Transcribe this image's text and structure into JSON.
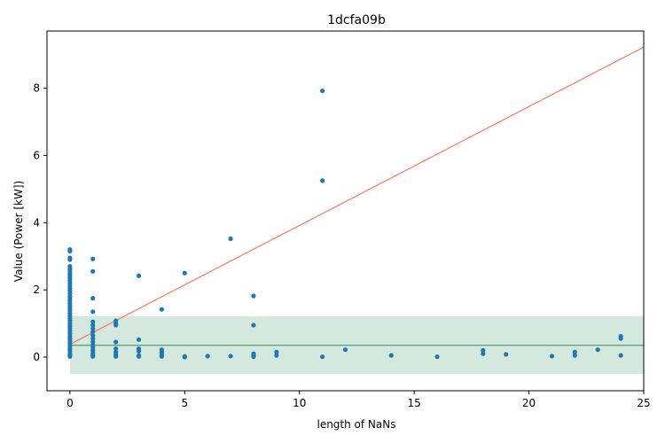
{
  "chart_data": {
    "type": "scatter",
    "title": "1dcfa09b",
    "xlabel": "length of NaNs",
    "ylabel": "Value (Power [kW])",
    "xlim": [
      -1,
      25
    ],
    "ylim": [
      -1,
      9.7
    ],
    "xticks": [
      0,
      5,
      10,
      15,
      20,
      25
    ],
    "yticks": [
      0,
      2,
      4,
      6,
      8
    ],
    "grid": false,
    "legend": "none",
    "colors": {
      "points": "#1f77b4",
      "trend_line": "#ff6347",
      "mean_line": "#2e8b57",
      "band_fill": "#2e8b57"
    },
    "trend_line": {
      "x": [
        0,
        25
      ],
      "y": [
        0.38,
        9.22
      ]
    },
    "mean_line": {
      "x": [
        0,
        25
      ],
      "y": [
        0.35,
        0.35
      ]
    },
    "band": {
      "x": [
        0,
        25
      ],
      "y_low": -0.5,
      "y_high": 1.22
    },
    "points": [
      [
        0,
        3.2
      ],
      [
        0,
        3.15
      ],
      [
        0,
        2.95
      ],
      [
        0,
        2.9
      ],
      [
        0,
        2.7
      ],
      [
        0,
        2.62
      ],
      [
        0,
        2.55
      ],
      [
        0,
        2.48
      ],
      [
        0,
        2.42
      ],
      [
        0,
        2.35
      ],
      [
        0,
        2.28
      ],
      [
        0,
        2.2
      ],
      [
        0,
        2.12
      ],
      [
        0,
        2.05
      ],
      [
        0,
        1.98
      ],
      [
        0,
        1.9
      ],
      [
        0,
        1.82
      ],
      [
        0,
        1.75
      ],
      [
        0,
        1.68
      ],
      [
        0,
        1.6
      ],
      [
        0,
        1.52
      ],
      [
        0,
        1.45
      ],
      [
        0,
        1.38
      ],
      [
        0,
        1.3
      ],
      [
        0,
        1.22
      ],
      [
        0,
        1.15
      ],
      [
        0,
        1.08
      ],
      [
        0,
        1.0
      ],
      [
        0,
        0.92
      ],
      [
        0,
        0.85
      ],
      [
        0,
        0.78
      ],
      [
        0,
        0.7
      ],
      [
        0,
        0.62
      ],
      [
        0,
        0.55
      ],
      [
        0,
        0.48
      ],
      [
        0,
        0.4
      ],
      [
        0,
        0.32
      ],
      [
        0,
        0.25
      ],
      [
        0,
        0.18
      ],
      [
        0,
        0.1
      ],
      [
        0,
        0.05
      ],
      [
        0,
        0.02
      ],
      [
        1,
        2.92
      ],
      [
        1,
        2.55
      ],
      [
        1,
        1.75
      ],
      [
        1,
        1.35
      ],
      [
        1,
        1.05
      ],
      [
        1,
        0.95
      ],
      [
        1,
        0.85
      ],
      [
        1,
        0.75
      ],
      [
        1,
        0.65
      ],
      [
        1,
        0.55
      ],
      [
        1,
        0.45
      ],
      [
        1,
        0.35
      ],
      [
        1,
        0.28
      ],
      [
        1,
        0.2
      ],
      [
        1,
        0.12
      ],
      [
        1,
        0.05
      ],
      [
        1,
        0.02
      ],
      [
        2,
        1.08
      ],
      [
        2,
        1.0
      ],
      [
        2,
        0.95
      ],
      [
        2,
        0.45
      ],
      [
        2,
        0.25
      ],
      [
        2,
        0.15
      ],
      [
        2,
        0.08
      ],
      [
        2,
        0.02
      ],
      [
        3,
        2.42
      ],
      [
        3,
        0.52
      ],
      [
        3,
        0.25
      ],
      [
        3,
        0.18
      ],
      [
        3,
        0.05
      ],
      [
        3,
        0.02
      ],
      [
        4,
        1.42
      ],
      [
        4,
        0.22
      ],
      [
        4,
        0.15
      ],
      [
        4,
        0.08
      ],
      [
        4,
        0.02
      ],
      [
        5,
        2.5
      ],
      [
        5,
        0.02
      ],
      [
        5,
        0.0
      ],
      [
        6,
        0.03
      ],
      [
        7,
        3.52
      ],
      [
        7,
        0.03
      ],
      [
        8,
        1.82
      ],
      [
        8,
        0.95
      ],
      [
        8,
        0.1
      ],
      [
        8,
        0.05
      ],
      [
        8,
        0.01
      ],
      [
        9,
        0.15
      ],
      [
        9,
        0.05
      ],
      [
        11,
        7.92
      ],
      [
        11,
        5.25
      ],
      [
        11,
        0.01
      ],
      [
        12,
        0.22
      ],
      [
        14,
        0.05
      ],
      [
        16,
        0.01
      ],
      [
        18,
        0.2
      ],
      [
        18,
        0.1
      ],
      [
        19,
        0.08
      ],
      [
        21,
        0.03
      ],
      [
        22,
        0.15
      ],
      [
        22,
        0.05
      ],
      [
        23,
        0.22
      ],
      [
        24,
        0.62
      ],
      [
        24,
        0.55
      ],
      [
        24,
        0.05
      ]
    ]
  }
}
